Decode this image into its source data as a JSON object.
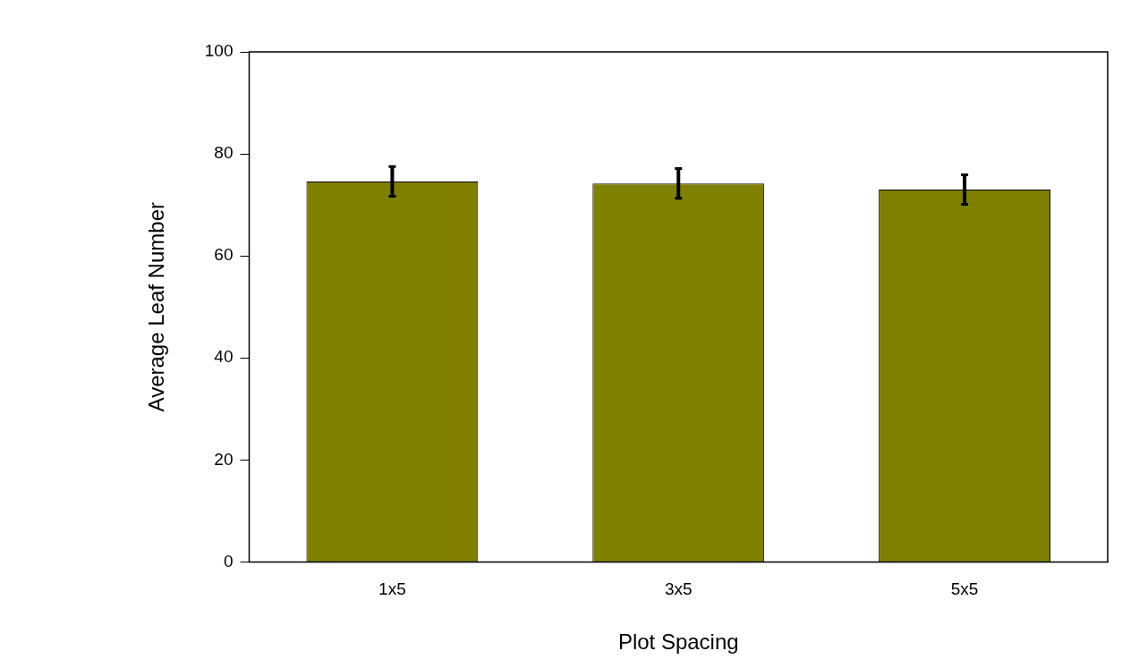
{
  "chart_data": {
    "type": "bar",
    "xlabel": "Plot Spacing",
    "ylabel": "Average Leaf Number",
    "categories": [
      "1x5",
      "3x5",
      "5x5"
    ],
    "values": [
      74.6,
      74.2,
      73.0
    ],
    "errors": [
      2.9,
      2.9,
      2.9
    ],
    "color": "#808000",
    "ylim": [
      0,
      100
    ],
    "yticks": [
      0,
      20,
      40,
      60,
      80,
      100
    ],
    "grid": false,
    "legend": false
  }
}
